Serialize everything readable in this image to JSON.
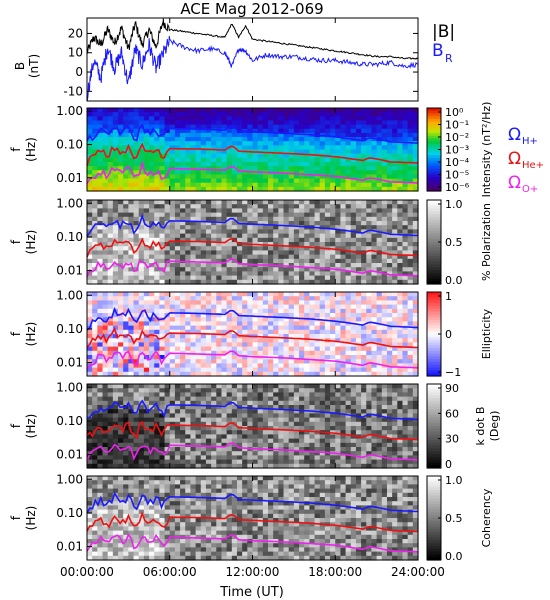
{
  "title": "ACE Mag 2012-069",
  "xlabel": "Time (UT)",
  "x_ticks": [
    "00:00:00",
    "06:00:00",
    "12:00:00",
    "18:00:00",
    "24:00:00"
  ],
  "x_tick_hours": [
    0,
    6,
    12,
    18,
    24
  ],
  "chart_data": [
    {
      "type": "line",
      "panel": "B",
      "ylabel": [
        "B",
        "(nT)"
      ],
      "ylim": [
        -15,
        28
      ],
      "y_ticks": [
        20,
        10,
        0,
        -10
      ],
      "x_unit": "hours UT",
      "legend": [
        {
          "label": "|B|",
          "color": "#000000"
        },
        {
          "label": "B",
          "sub": "R",
          "color": "#1a1aff"
        }
      ],
      "series": [
        {
          "name": "|B|",
          "color": "#000000",
          "x": [
            0,
            0.5,
            1,
            1.5,
            2,
            2.5,
            3,
            3.5,
            4,
            4.5,
            5,
            5.5,
            6,
            7,
            8,
            9,
            10,
            10.5,
            11,
            11.5,
            12,
            13,
            14,
            15,
            16,
            17,
            18,
            19,
            20,
            21,
            22,
            23,
            24
          ],
          "values": [
            10,
            18,
            14,
            22,
            15,
            23,
            12,
            25,
            14,
            22,
            13,
            26,
            22,
            21,
            20,
            19,
            18,
            25,
            18,
            24,
            17,
            16,
            15,
            14,
            13,
            12,
            11,
            10,
            9,
            8,
            8,
            7,
            7
          ]
        },
        {
          "name": "B_R",
          "color": "#1a1aff",
          "x": [
            0,
            0.5,
            1,
            1.5,
            2,
            2.5,
            3,
            3.5,
            4,
            4.5,
            5,
            5.5,
            6,
            7,
            8,
            9,
            10,
            10.5,
            11,
            11.5,
            12,
            13,
            14,
            15,
            16,
            17,
            18,
            19,
            20,
            21,
            22,
            23,
            24
          ],
          "values": [
            -12,
            6,
            -3,
            13,
            2,
            10,
            -6,
            12,
            4,
            14,
            2,
            9,
            16,
            13,
            11,
            12,
            10,
            3,
            12,
            11,
            6,
            9,
            8,
            8,
            7,
            6,
            6,
            5,
            4,
            4,
            5,
            3,
            4
          ]
        }
      ]
    },
    {
      "type": "heatmap",
      "panel": "power-spectrum",
      "ylabel": [
        "f",
        "(Hz)"
      ],
      "y_ticks": [
        "1.00",
        "0.10",
        "0.01"
      ],
      "y_scale": "log",
      "colorbar": {
        "label": "Intensity (nT²/Hz)",
        "ticks": [
          "10⁰",
          "10⁻¹",
          "10⁻²",
          "10⁻³",
          "10⁻⁴",
          "10⁻⁵",
          "10⁻⁶"
        ],
        "colormap": "rainbow"
      },
      "gyrofrequency_legend": [
        {
          "symbol": "Ω",
          "sub": "H+",
          "color": "#1a1aff"
        },
        {
          "symbol": "Ω",
          "sub": "He+",
          "color": "#ee1111"
        },
        {
          "symbol": "Ω",
          "sub": "O+",
          "color": "#ee22ee"
        }
      ]
    },
    {
      "type": "heatmap",
      "panel": "polarization",
      "ylabel": [
        "f",
        "(Hz)"
      ],
      "y_ticks": [
        "1.00",
        "0.10",
        "0.01"
      ],
      "colorbar": {
        "label": "% Polarization",
        "ticks": [
          "1.0",
          "0.5",
          "0.0"
        ],
        "colormap": "gray"
      }
    },
    {
      "type": "heatmap",
      "panel": "ellipticity",
      "ylabel": [
        "f",
        "(Hz)"
      ],
      "y_ticks": [
        "1.00",
        "0.10",
        "0.01"
      ],
      "colorbar": {
        "label": "Ellipticity",
        "ticks": [
          "1",
          "0",
          "−1"
        ],
        "colormap": "blue-white-red"
      }
    },
    {
      "type": "heatmap",
      "panel": "k-dot-b",
      "ylabel": [
        "f",
        "(Hz)"
      ],
      "y_ticks": [
        "1.00",
        "0.10",
        "0.01"
      ],
      "colorbar": {
        "label": "k dot B",
        "label2": "(Deg)",
        "ticks": [
          "90",
          "60",
          "30",
          "0"
        ],
        "colormap": "gray"
      }
    },
    {
      "type": "heatmap",
      "panel": "coherency",
      "ylabel": [
        "f",
        "(Hz)"
      ],
      "y_ticks": [
        "1.00",
        "0.10",
        "0.01"
      ],
      "colorbar": {
        "label": "Coherency",
        "ticks": [
          "1.0",
          "0.5",
          "0.0"
        ],
        "colormap": "gray"
      }
    }
  ],
  "gyro_lines": {
    "x_unit": "hours UT",
    "x": [
      0,
      1,
      1.5,
      2,
      2.5,
      3,
      3.5,
      4,
      4.5,
      5,
      5.5,
      6,
      8,
      10,
      10.5,
      11,
      12,
      14,
      16,
      18,
      20,
      20.5,
      22,
      24
    ],
    "H+": [
      0.12,
      0.25,
      0.17,
      0.33,
      0.22,
      0.3,
      0.12,
      0.35,
      0.2,
      0.28,
      0.15,
      0.3,
      0.29,
      0.27,
      0.37,
      0.25,
      0.24,
      0.22,
      0.2,
      0.17,
      0.13,
      0.16,
      0.12,
      0.11
    ],
    "He+": [
      0.03,
      0.062,
      0.043,
      0.082,
      0.055,
      0.075,
      0.03,
      0.088,
      0.05,
      0.07,
      0.038,
      0.075,
      0.073,
      0.068,
      0.092,
      0.063,
      0.06,
      0.055,
      0.05,
      0.043,
      0.033,
      0.04,
      0.03,
      0.028
    ],
    "O+": [
      0.0075,
      0.016,
      0.011,
      0.021,
      0.014,
      0.019,
      0.0075,
      0.022,
      0.0125,
      0.0175,
      0.0095,
      0.019,
      0.018,
      0.017,
      0.023,
      0.016,
      0.015,
      0.014,
      0.0125,
      0.011,
      0.0083,
      0.01,
      0.0075,
      0.007
    ]
  }
}
